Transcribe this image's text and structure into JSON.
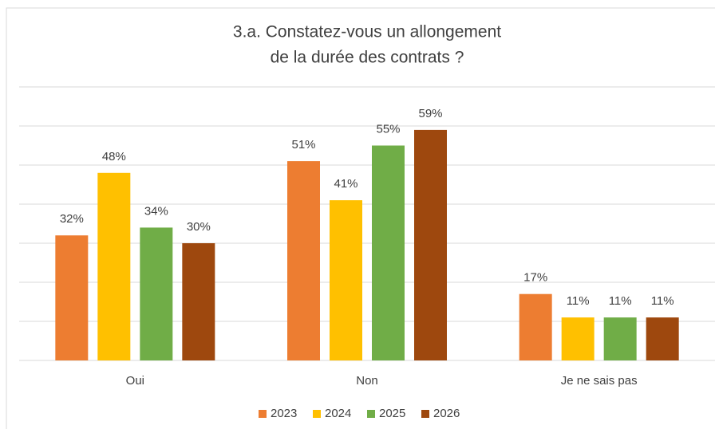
{
  "chart_data": {
    "type": "bar",
    "title": [
      "3.a. Constatez-vous un allongement",
      "de la durée des contrats ?"
    ],
    "categories": [
      "Oui",
      "Non",
      "Je ne sais pas"
    ],
    "series": [
      {
        "name": "2023",
        "color": "#ED7D31",
        "values": [
          32,
          51,
          17
        ],
        "value_labels": [
          "32%",
          "51%",
          "17%"
        ]
      },
      {
        "name": "2024",
        "color": "#FFC000",
        "values": [
          48,
          41,
          11
        ],
        "value_labels": [
          "48%",
          "41%",
          "11%"
        ]
      },
      {
        "name": "2025",
        "color": "#70AD47",
        "values": [
          34,
          55,
          11
        ],
        "value_labels": [
          "34%",
          "55%",
          "11%"
        ]
      },
      {
        "name": "2026",
        "color": "#9E480E",
        "values": [
          30,
          59,
          11
        ],
        "value_labels": [
          "30%",
          "59%",
          "11%"
        ]
      }
    ],
    "ylim": [
      0,
      70
    ],
    "yticks": [
      0,
      10,
      20,
      30,
      40,
      50,
      60,
      70
    ],
    "grid": true,
    "legend": "bottom"
  }
}
